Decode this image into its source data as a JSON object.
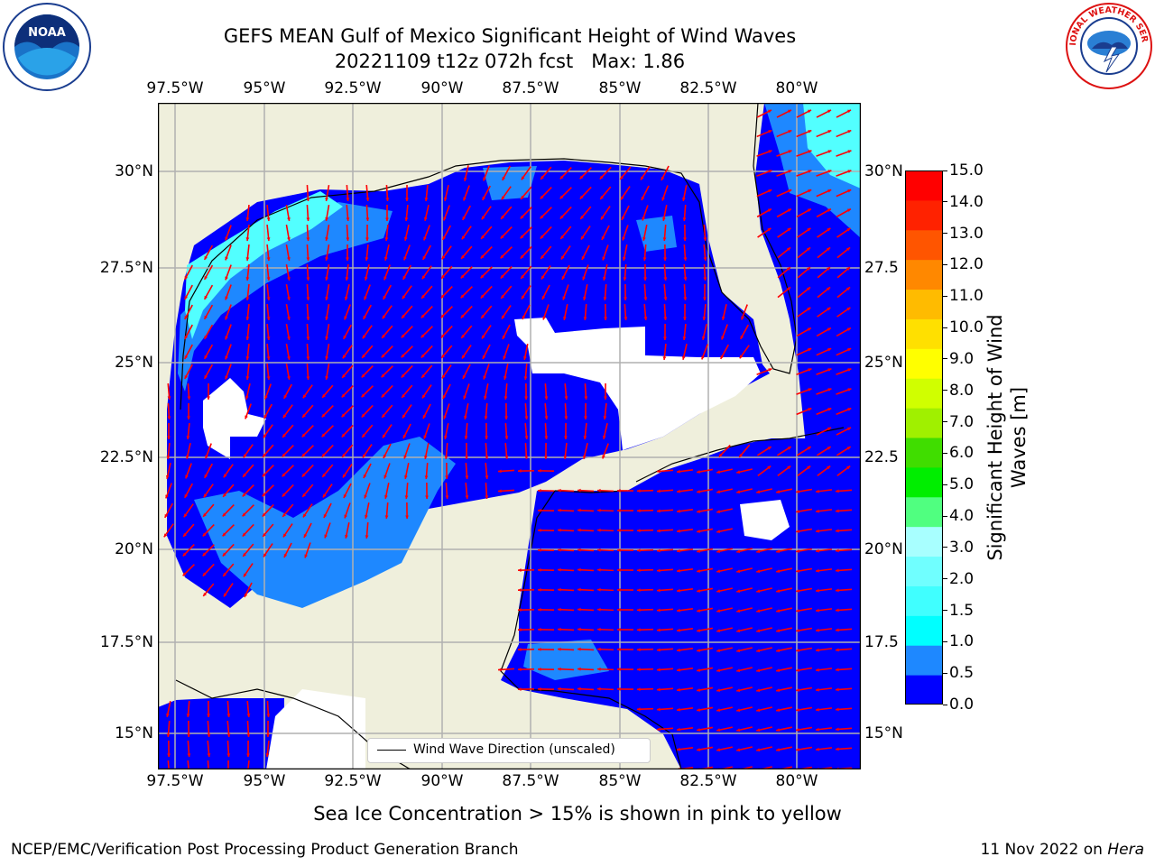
{
  "header": {
    "title_line1": "GEFS MEAN Gulf of Mexico Significant Height of Wind Waves",
    "title_line2": "20221109 t12z 072h fcst   Max: 1.86"
  },
  "logos": {
    "noaa_text": "NOAA",
    "nws_text": "NATIONAL WEATHER SERVICE"
  },
  "map": {
    "lon_labels": [
      "97.5°W",
      "95°W",
      "92.5°W",
      "90°W",
      "87.5°W",
      "85°W",
      "82.5°W",
      "80°W"
    ],
    "lat_labels_left": [
      "30°N",
      "27.5°N",
      "25°N",
      "22.5°N",
      "20°N",
      "17.5°N",
      "15°N"
    ],
    "lat_labels_right": [
      "30°N",
      "27.5",
      "25°N",
      "22.5",
      "20°N",
      "17.5",
      "15°N"
    ],
    "legend_label": "Wind Wave Direction (unscaled)",
    "colors": {
      "land": "#efefdc",
      "ocean_low": "#0000ff",
      "ocean_mid": "#1e88ff",
      "ocean_high": "#52ffff",
      "arrow": "#ff0000",
      "grid": "#b0b0b0"
    }
  },
  "colorbar": {
    "label": "Significant Height of Wind Waves [m]",
    "ticks": [
      "0.0",
      "0.5",
      "1.0",
      "1.5",
      "2.0",
      "3.0",
      "4.0",
      "5.0",
      "6.0",
      "7.0",
      "8.0",
      "9.0",
      "10.0",
      "11.0",
      "12.0",
      "13.0",
      "14.0",
      "15.0"
    ],
    "colors": [
      "#0000ff",
      "#1e88ff",
      "#00ffff",
      "#40ffff",
      "#70ffff",
      "#a8ffff",
      "#50ff80",
      "#00ee00",
      "#40dd00",
      "#a0f000",
      "#d0ff00",
      "#ffff00",
      "#ffe000",
      "#ffbb00",
      "#ff8800",
      "#ff5500",
      "#ff2200",
      "#ff0000"
    ]
  },
  "footer": {
    "note": "Sea Ice Concentration > 15% is shown in pink to yellow",
    "left": "NCEP/EMC/Verification Post Processing Product Generation Branch",
    "right_date": "11 Nov 2022 on ",
    "right_machine": "Hera"
  }
}
